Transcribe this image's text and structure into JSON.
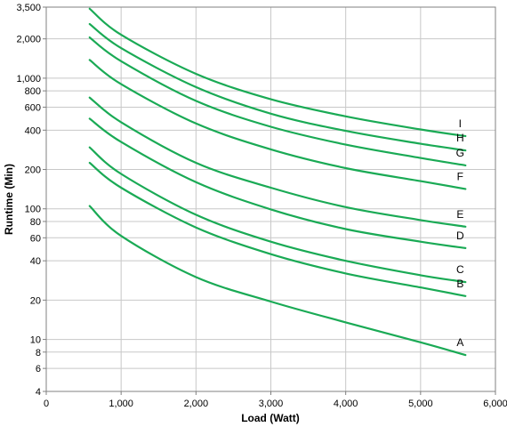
{
  "chart_data": {
    "type": "line",
    "xlabel": "Load (Watt)",
    "ylabel": "Runtime (Min)",
    "xlim": [
      0,
      6000
    ],
    "ylim": [
      4,
      3500
    ],
    "yscale": "log",
    "grid": true,
    "x_ticks": [
      0,
      1000,
      2000,
      3000,
      4000,
      5000,
      6000
    ],
    "x_tick_labels": [
      "0",
      "1,000",
      "2,000",
      "3,000",
      "4,000",
      "5,000",
      "6,000"
    ],
    "y_ticks": [
      4,
      6,
      8,
      10,
      20,
      40,
      60,
      80,
      100,
      200,
      400,
      600,
      800,
      1000,
      2000,
      3500
    ],
    "y_tick_labels": [
      "4",
      "6",
      "8",
      "10",
      "20",
      "40",
      "60",
      "80",
      "100",
      "200",
      "400",
      "600",
      "800",
      "1,000",
      "2,000",
      "3,500"
    ],
    "line_color": "#1aaa55",
    "series": [
      {
        "name": "A",
        "x": [
          580,
          1000,
          2000,
          3000,
          4000,
          5000,
          5600
        ],
        "values": [
          105,
          62,
          30,
          19.5,
          13.5,
          9.5,
          7.6
        ]
      },
      {
        "name": "B",
        "x": [
          580,
          1000,
          2000,
          3000,
          4000,
          5000,
          5600
        ],
        "values": [
          225,
          145,
          72,
          45,
          32,
          25,
          21.5
        ]
      },
      {
        "name": "C",
        "x": [
          580,
          1000,
          2000,
          3000,
          4000,
          5000,
          5600
        ],
        "values": [
          295,
          185,
          90,
          56,
          40,
          31,
          27.5
        ]
      },
      {
        "name": "D",
        "x": [
          580,
          1000,
          2000,
          3000,
          4000,
          5000,
          5600
        ],
        "values": [
          490,
          325,
          160,
          99,
          70,
          56,
          50
        ]
      },
      {
        "name": "E",
        "x": [
          580,
          1000,
          2000,
          3000,
          4000,
          5000,
          5600
        ],
        "values": [
          710,
          460,
          225,
          145,
          103,
          82,
          73
        ]
      },
      {
        "name": "F",
        "x": [
          580,
          1000,
          2000,
          3000,
          4000,
          5000,
          5600
        ],
        "values": [
          1380,
          900,
          450,
          285,
          205,
          163,
          142
        ]
      },
      {
        "name": "G",
        "x": [
          580,
          1000,
          2000,
          3000,
          4000,
          5000,
          5600
        ],
        "values": [
          2050,
          1350,
          670,
          425,
          310,
          245,
          215
        ]
      },
      {
        "name": "H",
        "x": [
          580,
          1000,
          2000,
          3000,
          4000,
          5000,
          5600
        ],
        "values": [
          2600,
          1700,
          855,
          535,
          395,
          315,
          280
        ]
      },
      {
        "name": "I",
        "x": [
          580,
          1000,
          2000,
          3000,
          4000,
          5000,
          5600
        ],
        "values": [
          3400,
          2150,
          1080,
          690,
          510,
          405,
          360
        ]
      }
    ]
  }
}
